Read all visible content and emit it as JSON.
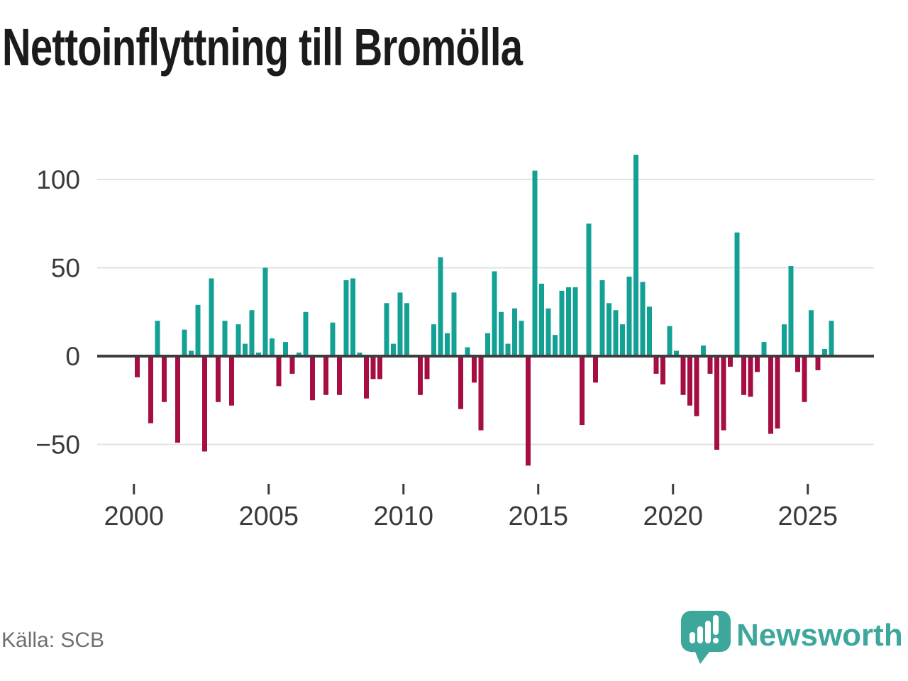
{
  "title": "Nettoinflyttning till Bromölla",
  "footer": {
    "source": "Källa: SCB",
    "brand": "Newsworthy"
  },
  "colors": {
    "positive": "#14a195",
    "negative": "#a50d43",
    "grid": "#e1e1e1",
    "axis": "#3d3d3d",
    "tick_text": "#3a3a3a",
    "title_text": "#1b1b1b",
    "source_text": "#6f6f6f",
    "brand_teal": "#3ea79c",
    "background": "#ffffff"
  },
  "chart_data": {
    "type": "bar",
    "title": "Nettoinflyttning till Bromölla",
    "frequency": "quarterly",
    "x_range": [
      "2000 Q1",
      "2025 Q4"
    ],
    "xlabel": "",
    "ylabel": "",
    "yticks": [
      100,
      50,
      0,
      -50
    ],
    "xticks": [
      2000,
      2005,
      2010,
      2015,
      2020,
      2025
    ],
    "ylim": [
      -75,
      125
    ],
    "grid": "horizontal",
    "legend": "none",
    "series": [
      {
        "year": 2000,
        "values": [
          -12,
          0,
          -38,
          20
        ]
      },
      {
        "year": 2001,
        "values": [
          -26,
          0,
          -49,
          15
        ]
      },
      {
        "year": 2002,
        "values": [
          3,
          29,
          -54,
          44
        ]
      },
      {
        "year": 2003,
        "values": [
          -26,
          20,
          -28,
          18
        ]
      },
      {
        "year": 2004,
        "values": [
          7,
          26,
          2,
          50
        ]
      },
      {
        "year": 2005,
        "values": [
          10,
          -17,
          8,
          -10
        ]
      },
      {
        "year": 2006,
        "values": [
          2,
          25,
          -25,
          0
        ]
      },
      {
        "year": 2007,
        "values": [
          -22,
          19,
          -22,
          43
        ]
      },
      {
        "year": 2008,
        "values": [
          44,
          2,
          -24,
          -13
        ]
      },
      {
        "year": 2009,
        "values": [
          -13,
          30,
          7,
          36
        ]
      },
      {
        "year": 2010,
        "values": [
          30,
          0,
          -22,
          -13
        ]
      },
      {
        "year": 2011,
        "values": [
          18,
          56,
          13,
          36
        ]
      },
      {
        "year": 2012,
        "values": [
          -30,
          5,
          -15,
          -42
        ]
      },
      {
        "year": 2013,
        "values": [
          13,
          48,
          25,
          7
        ]
      },
      {
        "year": 2014,
        "values": [
          27,
          20,
          -62,
          105
        ]
      },
      {
        "year": 2015,
        "values": [
          41,
          27,
          12,
          37
        ]
      },
      {
        "year": 2016,
        "values": [
          39,
          39,
          -39,
          75
        ]
      },
      {
        "year": 2017,
        "values": [
          -15,
          43,
          30,
          26
        ]
      },
      {
        "year": 2018,
        "values": [
          18,
          45,
          114,
          42
        ]
      },
      {
        "year": 2019,
        "values": [
          28,
          -10,
          -16,
          17
        ]
      },
      {
        "year": 2020,
        "values": [
          3,
          -22,
          -28,
          -34
        ]
      },
      {
        "year": 2021,
        "values": [
          6,
          -10,
          -53,
          -42
        ]
      },
      {
        "year": 2022,
        "values": [
          -6,
          70,
          -22,
          -23
        ]
      },
      {
        "year": 2023,
        "values": [
          -9,
          8,
          -44,
          -41
        ]
      },
      {
        "year": 2024,
        "values": [
          18,
          51,
          -9,
          -26
        ]
      },
      {
        "year": 2025,
        "values": [
          26,
          -8,
          4,
          20
        ]
      }
    ]
  }
}
